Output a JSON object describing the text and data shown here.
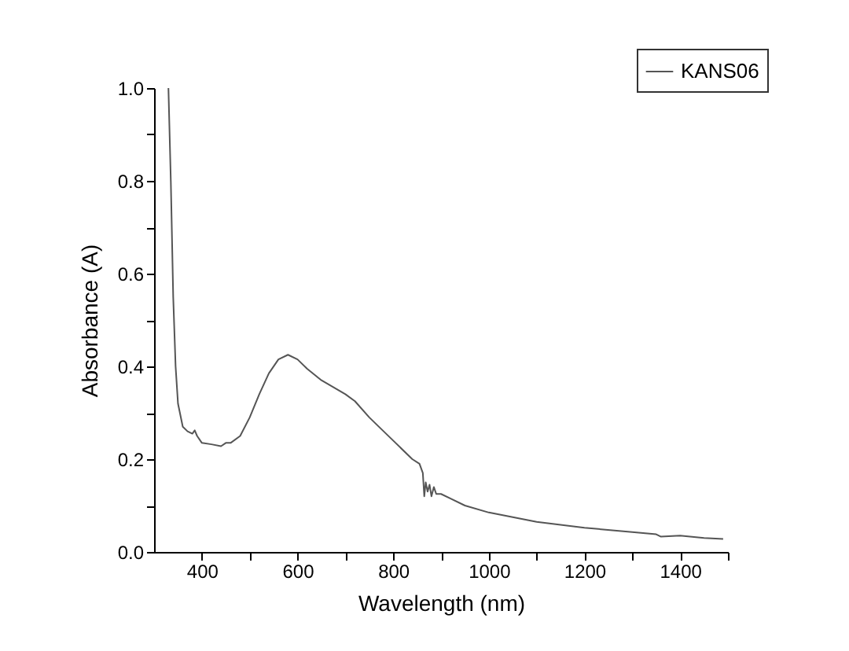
{
  "chart_data": {
    "type": "line",
    "xlabel": "Wavelength (nm)",
    "ylabel": "Absorbance (A)",
    "legend": "top right",
    "grid": false,
    "line_style": "solid",
    "marker": "none",
    "xlim": [
      300,
      1500
    ],
    "ylim": [
      0,
      1.0
    ],
    "xticks": [
      400,
      {
        "value": 500,
        "label": null
      },
      600,
      {
        "value": 700,
        "label": null
      },
      800,
      {
        "value": 900,
        "label": null
      },
      1000,
      {
        "value": 1100,
        "label": null
      },
      1200,
      {
        "value": 1300,
        "label": null
      },
      1400,
      {
        "value": 1500,
        "label": null
      }
    ],
    "yticks": [
      {
        "value": 0,
        "label": "0.0"
      },
      {
        "value": 0.1,
        "label": null
      },
      0.2,
      {
        "value": 0.3,
        "label": null
      },
      0.4,
      {
        "value": 0.5,
        "label": null
      },
      0.6,
      {
        "value": 0.7,
        "label": null
      },
      0.8,
      {
        "value": 0.9,
        "label": null
      },
      {
        "value": 1.0,
        "label": "1.0"
      }
    ],
    "series": [
      {
        "name": "KANS06",
        "color": "#555555",
        "x": [
          330,
          335,
          340,
          345,
          350,
          360,
          370,
          380,
          385,
          390,
          400,
          420,
          440,
          450,
          460,
          480,
          500,
          520,
          540,
          560,
          580,
          600,
          620,
          650,
          700,
          720,
          750,
          800,
          840,
          855,
          862,
          865,
          868,
          872,
          876,
          880,
          885,
          890,
          900,
          920,
          950,
          1000,
          1100,
          1200,
          1300,
          1350,
          1360,
          1400,
          1450,
          1490
        ],
        "values": [
          1.0,
          0.8,
          0.55,
          0.4,
          0.32,
          0.27,
          0.26,
          0.255,
          0.262,
          0.25,
          0.235,
          0.232,
          0.228,
          0.235,
          0.235,
          0.25,
          0.29,
          0.34,
          0.385,
          0.415,
          0.425,
          0.415,
          0.395,
          0.37,
          0.34,
          0.325,
          0.29,
          0.24,
          0.2,
          0.19,
          0.17,
          0.12,
          0.15,
          0.13,
          0.145,
          0.12,
          0.14,
          0.125,
          0.125,
          0.115,
          0.1,
          0.085,
          0.065,
          0.052,
          0.043,
          0.038,
          0.033,
          0.035,
          0.03,
          0.028
        ]
      }
    ]
  }
}
